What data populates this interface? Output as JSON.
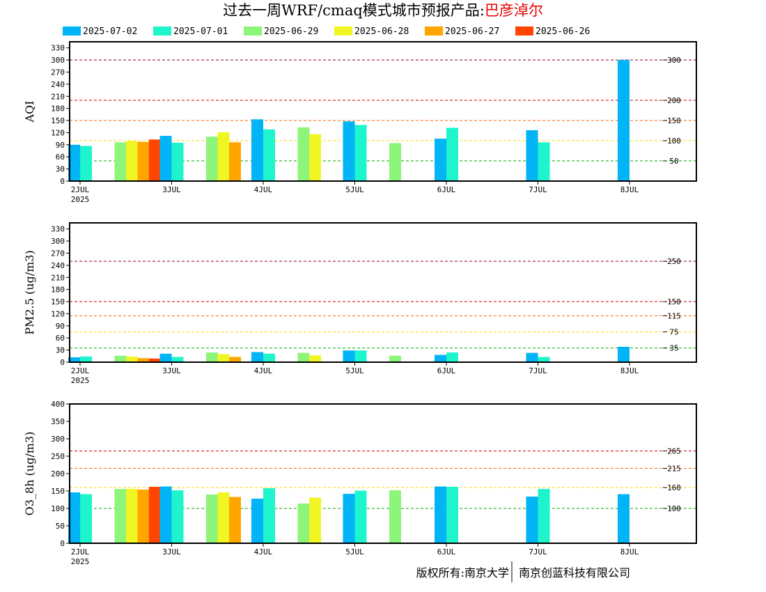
{
  "title": {
    "prefix": "过去一周WRF/cmaq模式城市预报产品:",
    "city": "巴彦淖尔"
  },
  "footer": {
    "left": "版权所有:南京大学",
    "right": "南京创蓝科技有限公司"
  },
  "colors": {
    "2025-07-02": "#00b4f5",
    "2025-07-01": "#1ef5cc",
    "2025-06-29": "#8cf57a",
    "2025-06-28": "#f0f523",
    "2025-06-27": "#ffa500",
    "2025-06-26": "#ff4500"
  },
  "chart_data": [
    {
      "type": "bar",
      "ylabel": "AQI",
      "ylim": [
        0,
        345
      ],
      "yticks": [
        0,
        30,
        60,
        90,
        120,
        150,
        180,
        210,
        240,
        270,
        300,
        330
      ],
      "xticks": [
        "2JUL",
        "3JUL",
        "4JUL",
        "5JUL",
        "6JUL",
        "7JUL",
        "8JUL"
      ],
      "xtick_sub": "2025",
      "legend": [
        "2025-07-02",
        "2025-07-01",
        "2025-06-29",
        "2025-06-28",
        "2025-06-27",
        "2025-06-26"
      ],
      "ref_lines": [
        {
          "value": 300,
          "label": "300",
          "color": "#8b0038"
        },
        {
          "value": 200,
          "label": "200",
          "color": "#cc0000"
        },
        {
          "value": 150,
          "label": "150",
          "color": "#ff6600"
        },
        {
          "value": 100,
          "label": "100",
          "color": "#ffd700"
        },
        {
          "value": 50,
          "label": "50",
          "color": "#00aa00"
        }
      ],
      "bars": [
        {
          "day": 0,
          "series": "2025-07-02",
          "value": 90
        },
        {
          "day": 0,
          "series": "2025-07-01",
          "value": 87
        },
        {
          "day": 0,
          "series": "2025-06-29",
          "value": 96
        },
        {
          "day": 0,
          "series": "2025-06-28",
          "value": 99
        },
        {
          "day": 0,
          "series": "2025-06-27",
          "value": 97
        },
        {
          "day": 0,
          "series": "2025-06-26",
          "value": 103
        },
        {
          "day": 1,
          "series": "2025-07-02",
          "value": 112
        },
        {
          "day": 1,
          "series": "2025-07-01",
          "value": 95
        },
        {
          "day": 1,
          "series": "2025-06-29",
          "value": 110
        },
        {
          "day": 1,
          "series": "2025-06-28",
          "value": 121
        },
        {
          "day": 1,
          "series": "2025-06-27",
          "value": 96
        },
        {
          "day": 2,
          "series": "2025-07-02",
          "value": 153
        },
        {
          "day": 2,
          "series": "2025-07-01",
          "value": 128
        },
        {
          "day": 2,
          "series": "2025-06-29",
          "value": 133
        },
        {
          "day": 2,
          "series": "2025-06-28",
          "value": 116
        },
        {
          "day": 3,
          "series": "2025-07-02",
          "value": 148
        },
        {
          "day": 3,
          "series": "2025-07-01",
          "value": 139
        },
        {
          "day": 3,
          "series": "2025-06-29",
          "value": 94
        },
        {
          "day": 4,
          "series": "2025-07-02",
          "value": 105
        },
        {
          "day": 4,
          "series": "2025-07-01",
          "value": 132
        },
        {
          "day": 5,
          "series": "2025-07-02",
          "value": 126
        },
        {
          "day": 5,
          "series": "2025-07-01",
          "value": 96
        },
        {
          "day": 6,
          "series": "2025-07-02",
          "value": 300
        }
      ]
    },
    {
      "type": "bar",
      "ylabel": "PM2.5 (ug/m3)",
      "ylim": [
        0,
        345
      ],
      "yticks": [
        0,
        30,
        60,
        90,
        120,
        150,
        180,
        210,
        240,
        270,
        300,
        330
      ],
      "xticks": [
        "2JUL",
        "3JUL",
        "4JUL",
        "5JUL",
        "6JUL",
        "7JUL",
        "8JUL"
      ],
      "xtick_sub": "2025",
      "ref_lines": [
        {
          "value": 250,
          "label": "250",
          "color": "#8b0038"
        },
        {
          "value": 150,
          "label": "150",
          "color": "#cc0000"
        },
        {
          "value": 115,
          "label": "115",
          "color": "#ff6600"
        },
        {
          "value": 75,
          "label": "75",
          "color": "#ffd700"
        },
        {
          "value": 35,
          "label": "35",
          "color": "#00aa00"
        }
      ],
      "bars": [
        {
          "day": 0,
          "series": "2025-07-02",
          "value": 12
        },
        {
          "day": 0,
          "series": "2025-07-01",
          "value": 14
        },
        {
          "day": 0,
          "series": "2025-06-29",
          "value": 16
        },
        {
          "day": 0,
          "series": "2025-06-28",
          "value": 14
        },
        {
          "day": 0,
          "series": "2025-06-27",
          "value": 10
        },
        {
          "day": 0,
          "series": "2025-06-26",
          "value": 9
        },
        {
          "day": 1,
          "series": "2025-07-02",
          "value": 21
        },
        {
          "day": 1,
          "series": "2025-07-01",
          "value": 13
        },
        {
          "day": 1,
          "series": "2025-06-29",
          "value": 24
        },
        {
          "day": 1,
          "series": "2025-06-28",
          "value": 20
        },
        {
          "day": 1,
          "series": "2025-06-27",
          "value": 13
        },
        {
          "day": 2,
          "series": "2025-07-02",
          "value": 25
        },
        {
          "day": 2,
          "series": "2025-07-01",
          "value": 21
        },
        {
          "day": 2,
          "series": "2025-06-29",
          "value": 23
        },
        {
          "day": 2,
          "series": "2025-06-28",
          "value": 17
        },
        {
          "day": 3,
          "series": "2025-07-02",
          "value": 29
        },
        {
          "day": 3,
          "series": "2025-07-01",
          "value": 29
        },
        {
          "day": 3,
          "series": "2025-06-29",
          "value": 16
        },
        {
          "day": 4,
          "series": "2025-07-02",
          "value": 18
        },
        {
          "day": 4,
          "series": "2025-07-01",
          "value": 24
        },
        {
          "day": 5,
          "series": "2025-07-02",
          "value": 23
        },
        {
          "day": 5,
          "series": "2025-07-01",
          "value": 13
        },
        {
          "day": 6,
          "series": "2025-07-02",
          "value": 38
        }
      ]
    },
    {
      "type": "bar",
      "ylabel": "O3_8h (ug/m3)",
      "ylim": [
        0,
        400
      ],
      "yticks": [
        0,
        50,
        100,
        150,
        200,
        250,
        300,
        350,
        400
      ],
      "xticks": [
        "2JUL",
        "3JUL",
        "4JUL",
        "5JUL",
        "6JUL",
        "7JUL",
        "8JUL"
      ],
      "xtick_sub": "2025",
      "ref_lines": [
        {
          "value": 265,
          "label": "265",
          "color": "#cc0000"
        },
        {
          "value": 215,
          "label": "215",
          "color": "#ff6600"
        },
        {
          "value": 160,
          "label": "160",
          "color": "#ffd700"
        },
        {
          "value": 100,
          "label": "100",
          "color": "#00aa00"
        }
      ],
      "bars": [
        {
          "day": 0,
          "series": "2025-07-02",
          "value": 146
        },
        {
          "day": 0,
          "series": "2025-07-01",
          "value": 141
        },
        {
          "day": 0,
          "series": "2025-06-29",
          "value": 156
        },
        {
          "day": 0,
          "series": "2025-06-28",
          "value": 156
        },
        {
          "day": 0,
          "series": "2025-06-27",
          "value": 154
        },
        {
          "day": 0,
          "series": "2025-06-26",
          "value": 162
        },
        {
          "day": 1,
          "series": "2025-07-02",
          "value": 163
        },
        {
          "day": 1,
          "series": "2025-07-01",
          "value": 152
        },
        {
          "day": 1,
          "series": "2025-06-29",
          "value": 140
        },
        {
          "day": 1,
          "series": "2025-06-28",
          "value": 146
        },
        {
          "day": 1,
          "series": "2025-06-27",
          "value": 133
        },
        {
          "day": 2,
          "series": "2025-07-02",
          "value": 128
        },
        {
          "day": 2,
          "series": "2025-07-01",
          "value": 158
        },
        {
          "day": 2,
          "series": "2025-06-29",
          "value": 114
        },
        {
          "day": 2,
          "series": "2025-06-28",
          "value": 131
        },
        {
          "day": 3,
          "series": "2025-07-02",
          "value": 142
        },
        {
          "day": 3,
          "series": "2025-07-01",
          "value": 151
        },
        {
          "day": 3,
          "series": "2025-06-29",
          "value": 152
        },
        {
          "day": 4,
          "series": "2025-07-02",
          "value": 163
        },
        {
          "day": 4,
          "series": "2025-07-01",
          "value": 162
        },
        {
          "day": 5,
          "series": "2025-07-02",
          "value": 134
        },
        {
          "day": 5,
          "series": "2025-07-01",
          "value": 156
        },
        {
          "day": 6,
          "series": "2025-07-02",
          "value": 141
        }
      ]
    }
  ]
}
